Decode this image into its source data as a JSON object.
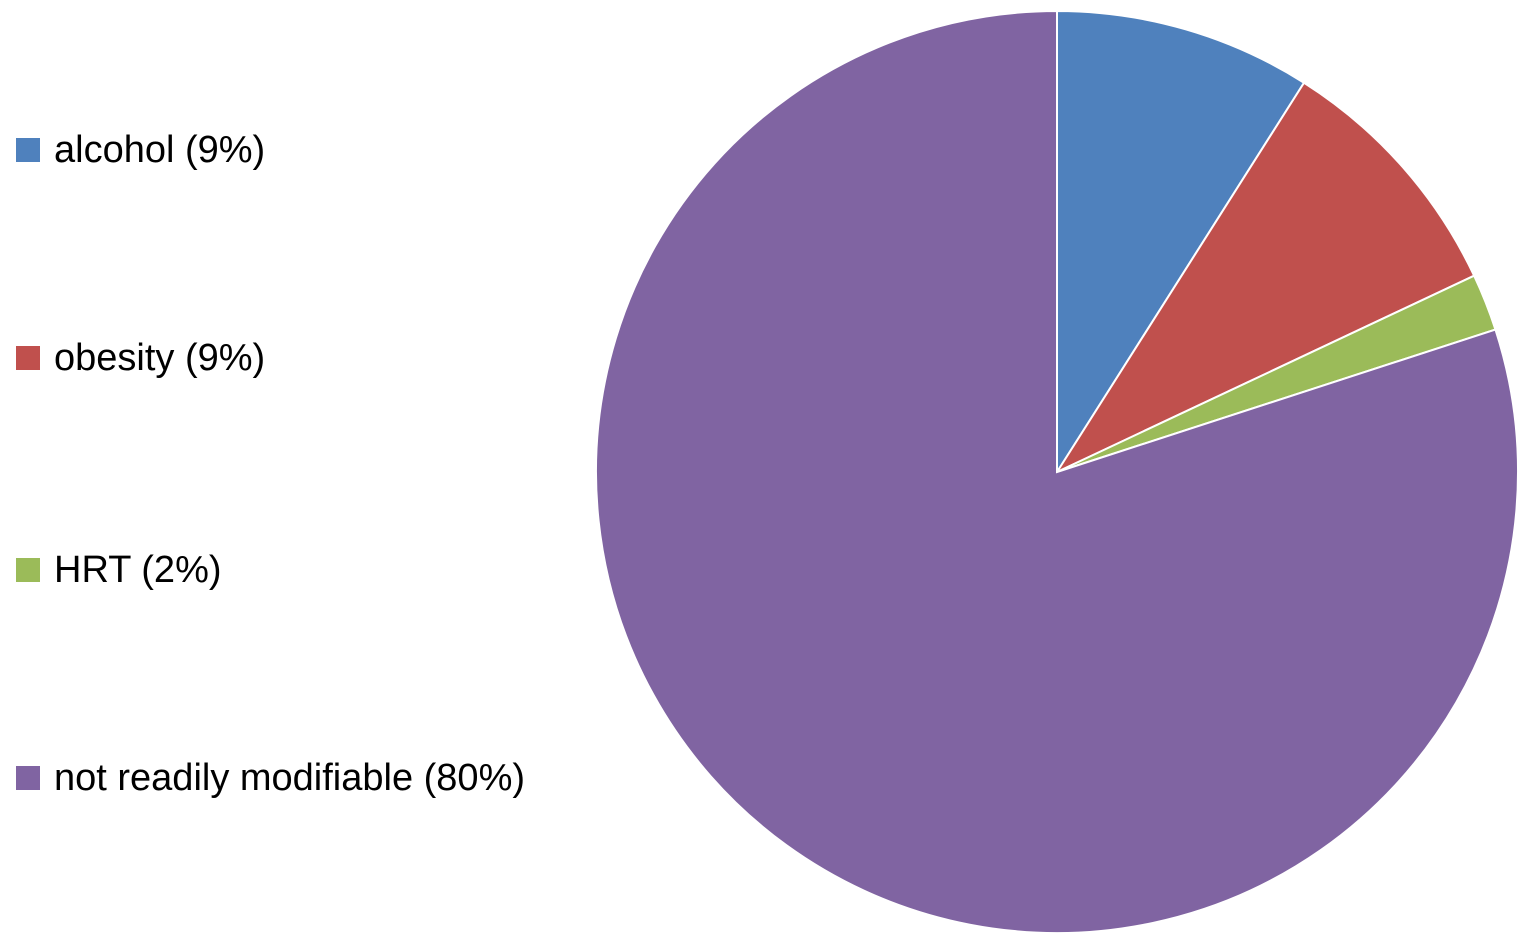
{
  "chart_data": {
    "type": "pie",
    "title": "",
    "legend_position": "left",
    "slices": [
      {
        "label": "alcohol (9%)",
        "value": 9,
        "color": "#4F81BD"
      },
      {
        "label": "obesity (9%)",
        "value": 9,
        "color": "#C0504D"
      },
      {
        "label": "HRT (2%)",
        "value": 2,
        "color": "#9BBB59"
      },
      {
        "label": "not readily modifiable (80%)",
        "value": 80,
        "color": "#8064A2"
      }
    ]
  }
}
